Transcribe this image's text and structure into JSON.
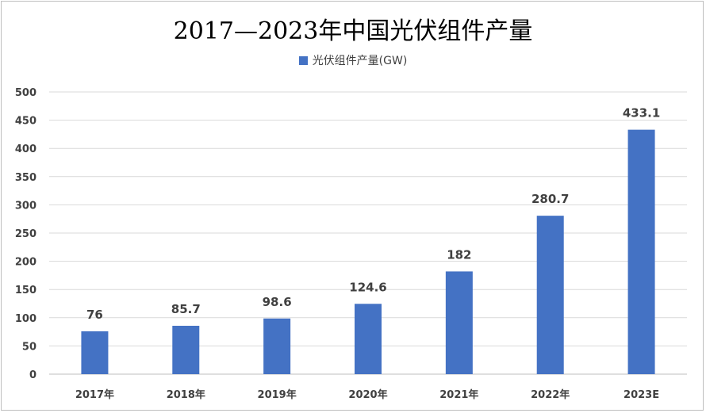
{
  "chart_data": {
    "type": "bar",
    "title": "2017—2023年中国光伏组件产量",
    "categories": [
      "2017年",
      "2018年",
      "2019年",
      "2020年",
      "2021年",
      "2022年",
      "2023E"
    ],
    "series": [
      {
        "name": "光伏组件产量(GW)",
        "values": [
          76,
          85.7,
          98.6,
          124.6,
          182,
          280.7,
          433.1
        ],
        "color": "#4472c4"
      }
    ],
    "data_labels": [
      "76",
      "85.7",
      "98.6",
      "124.6",
      "182",
      "280.7",
      "433.1"
    ],
    "xlabel": "",
    "ylabel": "",
    "ylim": [
      0,
      500
    ],
    "yticks": [
      0,
      50,
      100,
      150,
      200,
      250,
      300,
      350,
      400,
      450,
      500
    ],
    "grid": true,
    "legend_position": "top"
  }
}
